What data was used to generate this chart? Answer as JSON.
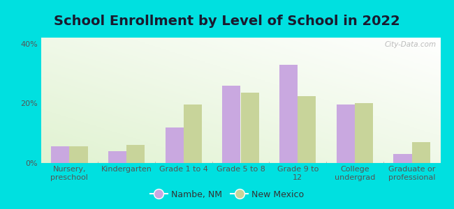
{
  "title": "School Enrollment by Level of School in 2022",
  "categories": [
    "Nursery,\npreschool",
    "Kindergarten",
    "Grade 1 to 4",
    "Grade 5 to 8",
    "Grade 9 to\n12",
    "College\nundergrad",
    "Graduate or\nprofessional"
  ],
  "nambe_values": [
    5.5,
    4.0,
    12.0,
    26.0,
    33.0,
    19.5,
    3.0
  ],
  "nm_values": [
    5.5,
    6.0,
    19.5,
    23.5,
    22.5,
    20.0,
    7.0
  ],
  "nambe_color": "#c9a8e0",
  "nm_color": "#c8d49a",
  "background_outer": "#00e0e0",
  "ylim": [
    0,
    42
  ],
  "yticks": [
    0,
    20,
    40
  ],
  "ytick_labels": [
    "0%",
    "20%",
    "40%"
  ],
  "legend_nambe": "Nambe, NM",
  "legend_nm": "New Mexico",
  "title_fontsize": 14,
  "tick_fontsize": 8,
  "legend_fontsize": 9,
  "watermark": "City-Data.com",
  "bar_width": 0.32
}
